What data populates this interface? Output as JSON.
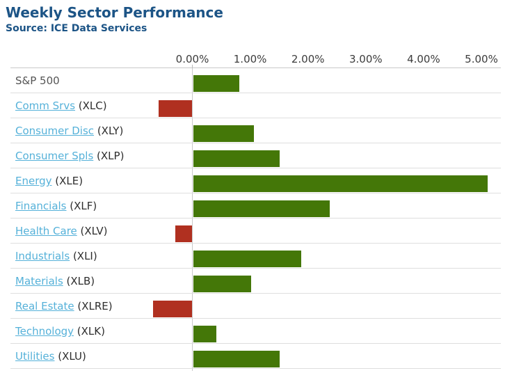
{
  "header": {
    "title": "Weekly Sector Performance",
    "source": "Source: ICE Data Services"
  },
  "colors": {
    "positive_bar": "#447708",
    "negative_bar": "#b03020",
    "title_text": "#1c5486",
    "link_text": "#55b1d9"
  },
  "chart_data": {
    "type": "bar",
    "orientation": "horizontal",
    "title": "Weekly Sector Performance",
    "subtitle": "Source: ICE Data Services",
    "unit": "%",
    "x_axis": {
      "tick_values": [
        0,
        1,
        2,
        3,
        4,
        5
      ],
      "tick_labels": [
        "0.00%",
        "1.00%",
        "2.00%",
        "3.00%",
        "4.00%",
        "5.00%"
      ],
      "grid": "row-separators-only",
      "zero_line": true
    },
    "rows": [
      {
        "label": "S&P 500",
        "ticker": "",
        "is_link": false,
        "value": 0.8
      },
      {
        "label": "Comm Srvs",
        "ticker": "(XLC)",
        "is_link": true,
        "value": -0.58
      },
      {
        "label": "Consumer Disc",
        "ticker": "(XLY)",
        "is_link": true,
        "value": 1.05
      },
      {
        "label": "Consumer Spls",
        "ticker": "(XLP)",
        "is_link": true,
        "value": 1.5
      },
      {
        "label": "Energy",
        "ticker": "(XLE)",
        "is_link": true,
        "value": 5.1
      },
      {
        "label": "Financials",
        "ticker": "(XLF)",
        "is_link": true,
        "value": 2.37
      },
      {
        "label": "Health Care",
        "ticker": "(XLV)",
        "is_link": true,
        "value": -0.3
      },
      {
        "label": "Industrials",
        "ticker": "(XLI)",
        "is_link": true,
        "value": 1.87
      },
      {
        "label": "Materials",
        "ticker": "(XLB)",
        "is_link": true,
        "value": 1.0
      },
      {
        "label": "Real Estate",
        "ticker": "(XLRE)",
        "is_link": true,
        "value": -0.68
      },
      {
        "label": "Technology",
        "ticker": "(XLK)",
        "is_link": true,
        "value": 0.4
      },
      {
        "label": "Utilities",
        "ticker": "(XLU)",
        "is_link": true,
        "value": 1.5
      }
    ]
  }
}
